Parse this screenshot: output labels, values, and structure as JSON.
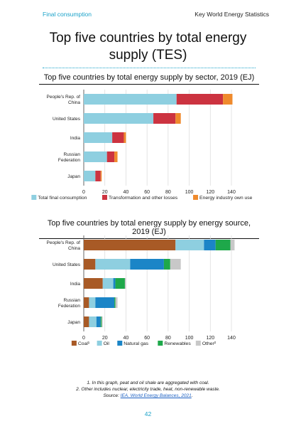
{
  "header": {
    "section": "Final consumption",
    "publication": "Key World Energy Statistics"
  },
  "main_title": "Top five countries by total energy supply (TES)",
  "colors": {
    "final": "#8ecfe0",
    "transformation": "#cc3340",
    "industry": "#ef8a2d",
    "coal": "#a85a26",
    "oil": "#8ecfe0",
    "gas": "#1b85c7",
    "renewables": "#1ea84a",
    "other": "#c8c8c8",
    "accent": "#1aa2c9"
  },
  "chart_data": [
    {
      "type": "bar",
      "orientation": "horizontal",
      "stacked": true,
      "title": "Top five countries by total energy supply by sector, 2019 (EJ)",
      "categories": [
        "People's Rep. of China",
        "United States",
        "India",
        "Russian Federation",
        "Japan"
      ],
      "category_lines": [
        [
          "People's Rep. of",
          "China"
        ],
        [
          "United States"
        ],
        [
          "India"
        ],
        [
          "Russian",
          "Federation"
        ],
        [
          "Japan"
        ]
      ],
      "series": [
        {
          "name": "Total final consumption",
          "color_key": "final",
          "values": [
            88,
            66,
            27,
            22,
            11
          ]
        },
        {
          "name": "Transformation and other losses",
          "color_key": "transformation",
          "values": [
            44,
            21,
            11,
            7,
            5
          ]
        },
        {
          "name": "Energy industry own use",
          "color_key": "industry",
          "values": [
            9,
            5,
            2,
            3,
            1
          ]
        }
      ],
      "xlim": [
        0,
        140
      ],
      "xticks": [
        0,
        20,
        40,
        60,
        80,
        100,
        120,
        140
      ],
      "grid": true,
      "legend_position": "bottom"
    },
    {
      "type": "bar",
      "orientation": "horizontal",
      "stacked": true,
      "title": "Top five countries by total energy supply by energy source, 2019 (EJ)",
      "categories": [
        "People's Rep. of China",
        "United States",
        "India",
        "Russian Federation",
        "Japan"
      ],
      "category_lines": [
        [
          "People's Rep. of",
          "China"
        ],
        [
          "United States"
        ],
        [
          "India"
        ],
        [
          "Russian",
          "Federation"
        ],
        [
          "Japan"
        ]
      ],
      "series": [
        {
          "name": "Coal¹",
          "color_key": "coal",
          "values": [
            87,
            11,
            18,
            5,
            5
          ]
        },
        {
          "name": "Oil",
          "color_key": "oil",
          "values": [
            27,
            33,
            10,
            6,
            7
          ]
        },
        {
          "name": "Natural gas",
          "color_key": "gas",
          "values": [
            11,
            32,
            2,
            18,
            4
          ]
        },
        {
          "name": "Renewables",
          "color_key": "renewables",
          "values": [
            14,
            6,
            9,
            1,
            1
          ]
        },
        {
          "name": "Other²",
          "color_key": "other",
          "values": [
            4,
            10,
            1,
            2,
            1
          ]
        }
      ],
      "xlim": [
        0,
        140
      ],
      "xticks": [
        0,
        20,
        40,
        60,
        80,
        100,
        120,
        140
      ],
      "grid": true,
      "legend_position": "bottom"
    }
  ],
  "footnotes": {
    "note1": "1. In this graph, peat and oil shale are aggregated with coal.",
    "note2": "2. Other includes nuclear, electricity trade, heat, non-renewable waste.",
    "source_prefix": "Source: ",
    "source_link": "IEA. World Energy Balances, 2021",
    "source_suffix": "."
  },
  "page_number": "42"
}
